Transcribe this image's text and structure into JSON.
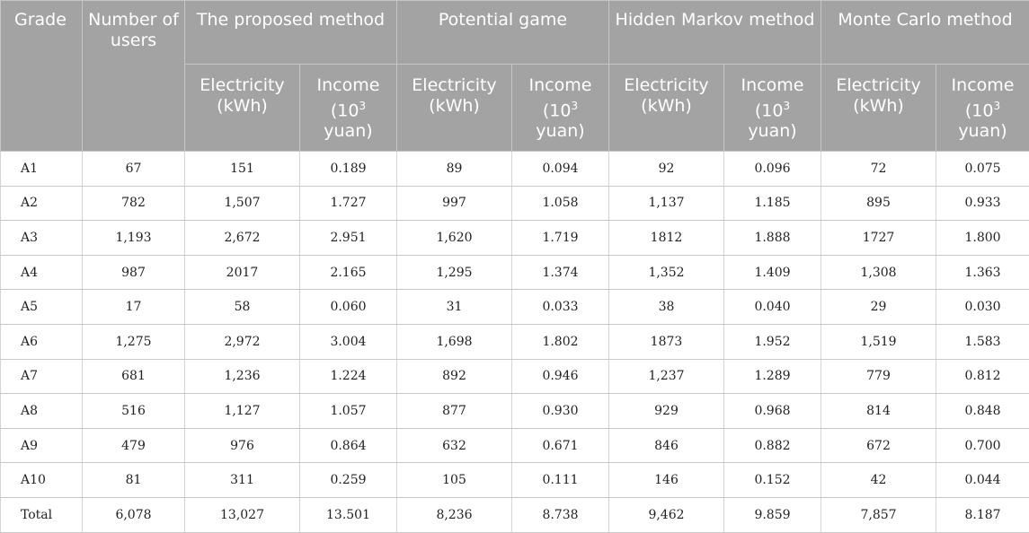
{
  "header": {
    "grade": "Grade",
    "users": "Number of users",
    "methods": [
      "The proposed method",
      "Potential game",
      "Hidden Markov method",
      "Monte Carlo method"
    ],
    "electricity": "Electricity (kWh)",
    "income_prefix": "Income (10",
    "income_exp": "3",
    "income_suffix": " yuan)"
  },
  "rows": [
    [
      "A1",
      "67",
      "151",
      "0.189",
      "89",
      "0.094",
      "92",
      "0.096",
      "72",
      "0.075"
    ],
    [
      "A2",
      "782",
      "1,507",
      "1.727",
      "997",
      "1.058",
      "1,137",
      "1.185",
      "895",
      "0.933"
    ],
    [
      "A3",
      "1,193",
      "2,672",
      "2.951",
      "1,620",
      "1.719",
      "1812",
      "1.888",
      "1727",
      "1.800"
    ],
    [
      "A4",
      "987",
      "2017",
      "2.165",
      "1,295",
      "1.374",
      "1,352",
      "1.409",
      "1,308",
      "1.363"
    ],
    [
      "A5",
      "17",
      "58",
      "0.060",
      "31",
      "0.033",
      "38",
      "0.040",
      "29",
      "0.030"
    ],
    [
      "A6",
      "1,275",
      "2,972",
      "3.004",
      "1,698",
      "1.802",
      "1873",
      "1.952",
      "1,519",
      "1.583"
    ],
    [
      "A7",
      "681",
      "1,236",
      "1.224",
      "892",
      "0.946",
      "1,237",
      "1.289",
      "779",
      "0.812"
    ],
    [
      "A8",
      "516",
      "1,127",
      "1.057",
      "877",
      "0.930",
      "929",
      "0.968",
      "814",
      "0.848"
    ],
    [
      "A9",
      "479",
      "976",
      "0.864",
      "632",
      "0.671",
      "846",
      "0.882",
      "672",
      "0.700"
    ],
    [
      "A10",
      "81",
      "311",
      "0.259",
      "105",
      "0.111",
      "146",
      "0.152",
      "42",
      "0.044"
    ],
    [
      "Total",
      "6,078",
      "13,027",
      "13.501",
      "8,236",
      "8.738",
      "9,462",
      "9.859",
      "7,857",
      "8.187"
    ]
  ]
}
